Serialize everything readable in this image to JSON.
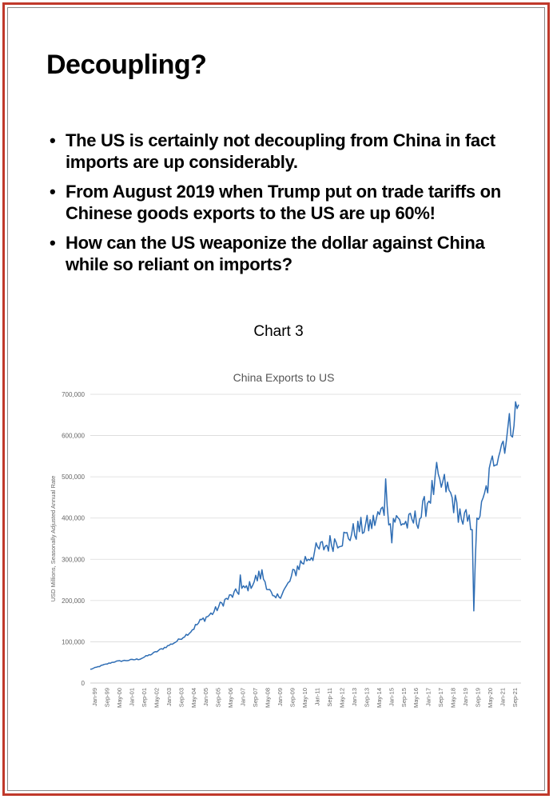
{
  "slide": {
    "title": "Decoupling?",
    "bullets": [
      "The US is certainly not decoupling from China in fact imports are up considerably.",
      "From August 2019 when Trump put on trade tariffs on Chinese goods exports to the US are up 60%!",
      "How can the US weaponize the dollar against China while so reliant on imports?"
    ],
    "bullet_symbol": "•",
    "chart_caption": "Chart 3"
  },
  "colors": {
    "border": "#c0392b",
    "line": "#2e6db4"
  },
  "chart_data": {
    "type": "line",
    "title": "China Exports to US",
    "xlabel": "",
    "ylabel": "USD Millions, Seasonally Adjusted Annual Rate",
    "ylim": [
      0,
      700000
    ],
    "y_ticks": [
      0,
      100000,
      200000,
      300000,
      400000,
      500000,
      600000,
      700000
    ],
    "y_tick_labels": [
      "0",
      "100,000",
      "200,000",
      "300,000",
      "400,000",
      "500,000",
      "600,000",
      "700,000"
    ],
    "x_tick_labels": [
      "Jan-99",
      "Sep-99",
      "May-00",
      "Jan-01",
      "Sep-01",
      "May-02",
      "Jan-03",
      "Sep-03",
      "May-04",
      "Jan-05",
      "Sep-05",
      "May-06",
      "Jan-07",
      "Sep-07",
      "May-08",
      "Jan-09",
      "Sep-09",
      "May-10",
      "Jan-11",
      "Sep-11",
      "May-12",
      "Jan-13",
      "Sep-13",
      "May-14",
      "Jan-15",
      "Sep-15",
      "May-16",
      "Jan-17",
      "Sep-17",
      "May-18",
      "Jan-19",
      "Sep-19",
      "May-20",
      "Jan-21",
      "Sep-21"
    ],
    "grid": true,
    "series": [
      {
        "x": [
          "Jan-99",
          "Sep-99",
          "May-00",
          "Jan-01",
          "Sep-01",
          "May-02",
          "Jan-03",
          "Sep-03",
          "May-04",
          "Jan-05",
          "Sep-05",
          "May-06",
          "Jan-07",
          "Sep-07",
          "May-08",
          "Jan-09",
          "Sep-09",
          "May-10",
          "Jan-11",
          "Sep-11",
          "May-12",
          "Jan-13",
          "Sep-13",
          "May-14",
          "Jan-15",
          "Sep-15",
          "May-16",
          "Jan-17",
          "Sep-17",
          "May-18",
          "Jan-19",
          "Sep-19",
          "May-20",
          "Jan-21",
          "Sep-21",
          "Mar-22"
        ],
        "values": [
          33000,
          43000,
          52000,
          55000,
          58000,
          70000,
          85000,
          100000,
          120000,
          150000,
          170000,
          200000,
          220000,
          235000,
          265000,
          200000,
          230000,
          285000,
          310000,
          330000,
          345000,
          355000,
          375000,
          385000,
          420000,
          395000,
          385000,
          405000,
          470000,
          480000,
          420000,
          385000,
          420000,
          550000,
          600000,
          675000
        ]
      }
    ]
  }
}
